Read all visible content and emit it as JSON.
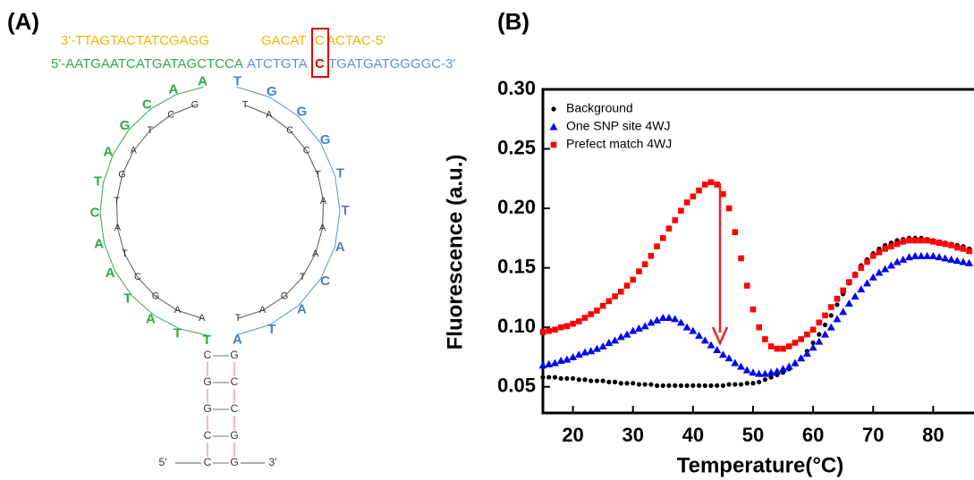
{
  "panel_a": {
    "label": "(A)",
    "top_strand": [
      "3'-TTAGTACTATCGAGG",
      "GACAT",
      "C",
      "ACTAC-5'"
    ],
    "bottom_strand": [
      "5'-AATGAATCATGATAGCTCCA",
      "ATCTGTA",
      "C",
      "TGATGATGGGGC-3'"
    ],
    "loop_outer_left": [
      "A",
      "A",
      "C",
      "G",
      "A",
      "T",
      "C",
      "A",
      "A",
      "T",
      "A",
      "T",
      "T"
    ],
    "loop_outer_right": [
      "T",
      "G",
      "G",
      "G",
      "T",
      "T",
      "A",
      "C",
      "A",
      "T",
      "A"
    ],
    "loop_inner_left": [
      "G",
      "C",
      "T",
      "A",
      "G",
      "T",
      "A",
      "T",
      "C",
      "G",
      "A",
      "A"
    ],
    "loop_inner_right": [
      "T",
      "A",
      "C",
      "C",
      "T",
      "A",
      "A",
      "A",
      "T",
      "G",
      "A",
      "T"
    ],
    "stem": [
      [
        "C",
        "G"
      ],
      [
        "G",
        "C"
      ],
      [
        "G",
        "C"
      ],
      [
        "C",
        "G"
      ],
      [
        "C",
        "G"
      ]
    ],
    "stem_ends": [
      "5'",
      "3'"
    ]
  },
  "panel_b_label": "(B)",
  "chart_data": {
    "type": "scatter",
    "x_label": "Temperature(°C)",
    "y_label": "Fluorescence (a.u.)",
    "x": [
      15,
      16,
      17,
      18,
      19,
      20,
      21,
      22,
      23,
      24,
      25,
      26,
      27,
      28,
      29,
      30,
      31,
      32,
      33,
      34,
      35,
      36,
      37,
      38,
      39,
      40,
      41,
      42,
      43,
      44,
      45,
      46,
      47,
      48,
      49,
      50,
      51,
      52,
      53,
      54,
      55,
      56,
      57,
      58,
      59,
      60,
      61,
      62,
      63,
      64,
      65,
      66,
      67,
      68,
      69,
      70,
      71,
      72,
      73,
      74,
      75,
      76,
      77,
      78,
      79,
      80,
      81,
      82,
      83,
      84,
      85,
      86
    ],
    "series": [
      {
        "name": "Background",
        "color": "#000000",
        "marker": "circle",
        "values": [
          0.058,
          0.058,
          0.058,
          0.057,
          0.057,
          0.057,
          0.056,
          0.056,
          0.055,
          0.055,
          0.055,
          0.054,
          0.054,
          0.053,
          0.053,
          0.053,
          0.052,
          0.052,
          0.052,
          0.051,
          0.051,
          0.051,
          0.051,
          0.051,
          0.051,
          0.051,
          0.051,
          0.051,
          0.051,
          0.051,
          0.051,
          0.052,
          0.052,
          0.052,
          0.053,
          0.053,
          0.054,
          0.056,
          0.058,
          0.06,
          0.062,
          0.065,
          0.069,
          0.074,
          0.08,
          0.087,
          0.094,
          0.102,
          0.11,
          0.119,
          0.128,
          0.137,
          0.145,
          0.152,
          0.157,
          0.162,
          0.166,
          0.169,
          0.171,
          0.173,
          0.174,
          0.175,
          0.175,
          0.175,
          0.174,
          0.173,
          0.172,
          0.171,
          0.17,
          0.169,
          0.168,
          0.166
        ]
      },
      {
        "name": "One SNP site 4WJ",
        "color": "#0000ff",
        "marker": "triangle",
        "values": [
          0.068,
          0.069,
          0.07,
          0.072,
          0.073,
          0.075,
          0.077,
          0.079,
          0.08,
          0.082,
          0.084,
          0.087,
          0.089,
          0.092,
          0.094,
          0.097,
          0.099,
          0.101,
          0.104,
          0.106,
          0.108,
          0.108,
          0.107,
          0.104,
          0.1,
          0.097,
          0.093,
          0.089,
          0.085,
          0.081,
          0.077,
          0.074,
          0.07,
          0.067,
          0.064,
          0.062,
          0.061,
          0.061,
          0.062,
          0.063,
          0.065,
          0.067,
          0.07,
          0.074,
          0.078,
          0.083,
          0.088,
          0.094,
          0.1,
          0.107,
          0.113,
          0.12,
          0.126,
          0.132,
          0.137,
          0.142,
          0.146,
          0.149,
          0.152,
          0.155,
          0.157,
          0.159,
          0.16,
          0.16,
          0.16,
          0.16,
          0.159,
          0.158,
          0.157,
          0.156,
          0.155,
          0.154
        ]
      },
      {
        "name": "Prefect match 4WJ",
        "color": "#ff0000",
        "marker": "square",
        "values": [
          0.096,
          0.097,
          0.098,
          0.1,
          0.101,
          0.103,
          0.105,
          0.108,
          0.111,
          0.114,
          0.118,
          0.122,
          0.126,
          0.13,
          0.135,
          0.14,
          0.147,
          0.153,
          0.16,
          0.168,
          0.175,
          0.183,
          0.19,
          0.198,
          0.205,
          0.21,
          0.215,
          0.22,
          0.222,
          0.22,
          0.212,
          0.2,
          0.18,
          0.158,
          0.135,
          0.115,
          0.1,
          0.09,
          0.084,
          0.082,
          0.082,
          0.084,
          0.087,
          0.09,
          0.094,
          0.098,
          0.104,
          0.11,
          0.117,
          0.124,
          0.131,
          0.138,
          0.144,
          0.15,
          0.155,
          0.16,
          0.163,
          0.166,
          0.168,
          0.17,
          0.172,
          0.173,
          0.173,
          0.173,
          0.173,
          0.172,
          0.171,
          0.17,
          0.169,
          0.167,
          0.166,
          0.164
        ]
      }
    ],
    "xlim": [
      15,
      86.5
    ],
    "xticks": [
      20,
      30,
      40,
      50,
      60,
      70,
      80
    ],
    "ylim": [
      0.028,
      0.3
    ],
    "yticks": [
      0.05,
      {
        "value": 0.1,
        "label": "0.10"
      },
      0.15,
      {
        "value": 0.2,
        "label": "0.20"
      },
      0.25,
      {
        "value": 0.3,
        "label": "0.30"
      }
    ],
    "legend": "upper left"
  }
}
